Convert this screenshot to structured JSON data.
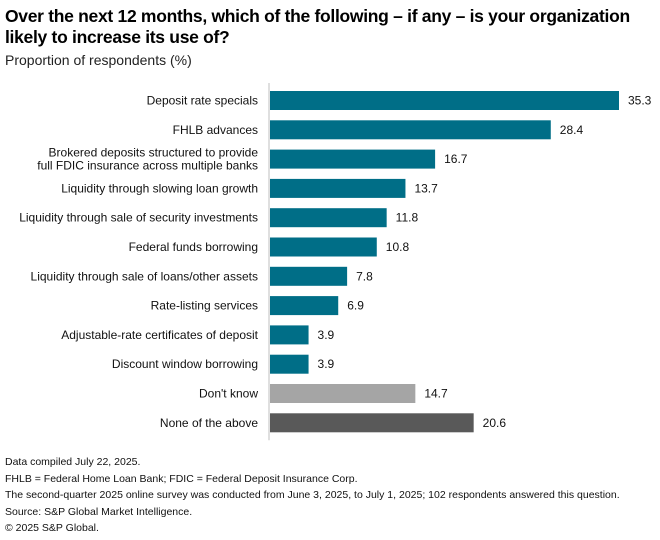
{
  "header": {
    "title": "Over the next 12 months, which of the following – if any – is your organization likely to increase its use of?",
    "subtitle": "Proportion of respondents (%)"
  },
  "colors": {
    "primary": "#006e87",
    "dont_know": "#a5a5a5",
    "none": "#595959",
    "axis": "#bfbfbf"
  },
  "chart_data": {
    "type": "bar",
    "orientation": "horizontal",
    "title": "Over the next 12 months, which of the following – if any – is your organization likely to increase its use of?",
    "subtitle": "Proportion of respondents (%)",
    "xlabel": "",
    "ylabel": "",
    "xlim": [
      0,
      35.3
    ],
    "grid": false,
    "legend": "none",
    "categories": [
      "Deposit rate specials",
      "FHLB advances",
      "Brokered deposits structured to provide full FDIC insurance across multiple banks",
      "Liquidity through slowing loan growth",
      "Liquidity through sale of security investments",
      "Federal funds borrowing",
      "Liquidity through sale of loans/other assets",
      "Rate-listing services",
      "Adjustable-rate certificates of deposit",
      "Discount window borrowing",
      "Don't know",
      "None of the above"
    ],
    "label_lines": [
      [
        "Deposit rate specials"
      ],
      [
        "FHLB advances"
      ],
      [
        "Brokered deposits structured to provide",
        "full FDIC insurance across multiple banks"
      ],
      [
        "Liquidity through slowing loan growth"
      ],
      [
        "Liquidity through sale of security investments"
      ],
      [
        "Federal funds borrowing"
      ],
      [
        "Liquidity through sale of loans/other assets"
      ],
      [
        "Rate-listing services"
      ],
      [
        "Adjustable-rate certificates of deposit"
      ],
      [
        "Discount window borrowing"
      ],
      [
        "Don't know"
      ],
      [
        "None of the above"
      ]
    ],
    "values": [
      35.3,
      28.4,
      16.7,
      13.7,
      11.8,
      10.8,
      7.8,
      6.9,
      3.9,
      3.9,
      14.7,
      20.6
    ],
    "value_labels": [
      "35.3",
      "28.4",
      "16.7",
      "13.7",
      "11.8",
      "10.8",
      "7.8",
      "6.9",
      "3.9",
      "3.9",
      "14.7",
      "20.6"
    ],
    "bar_color_keys": [
      "primary",
      "primary",
      "primary",
      "primary",
      "primary",
      "primary",
      "primary",
      "primary",
      "primary",
      "primary",
      "dont_know",
      "none"
    ]
  },
  "footer": {
    "lines": [
      "Data compiled July 22, 2025.",
      "FHLB = Federal Home Loan Bank; FDIC = Federal Deposit Insurance Corp.",
      "The second-quarter 2025 online survey was conducted from June 3, 2025, to July 1, 2025; 102 respondents answered this question.",
      "Source: S&P Global Market Intelligence.",
      "© 2025 S&P Global."
    ]
  }
}
